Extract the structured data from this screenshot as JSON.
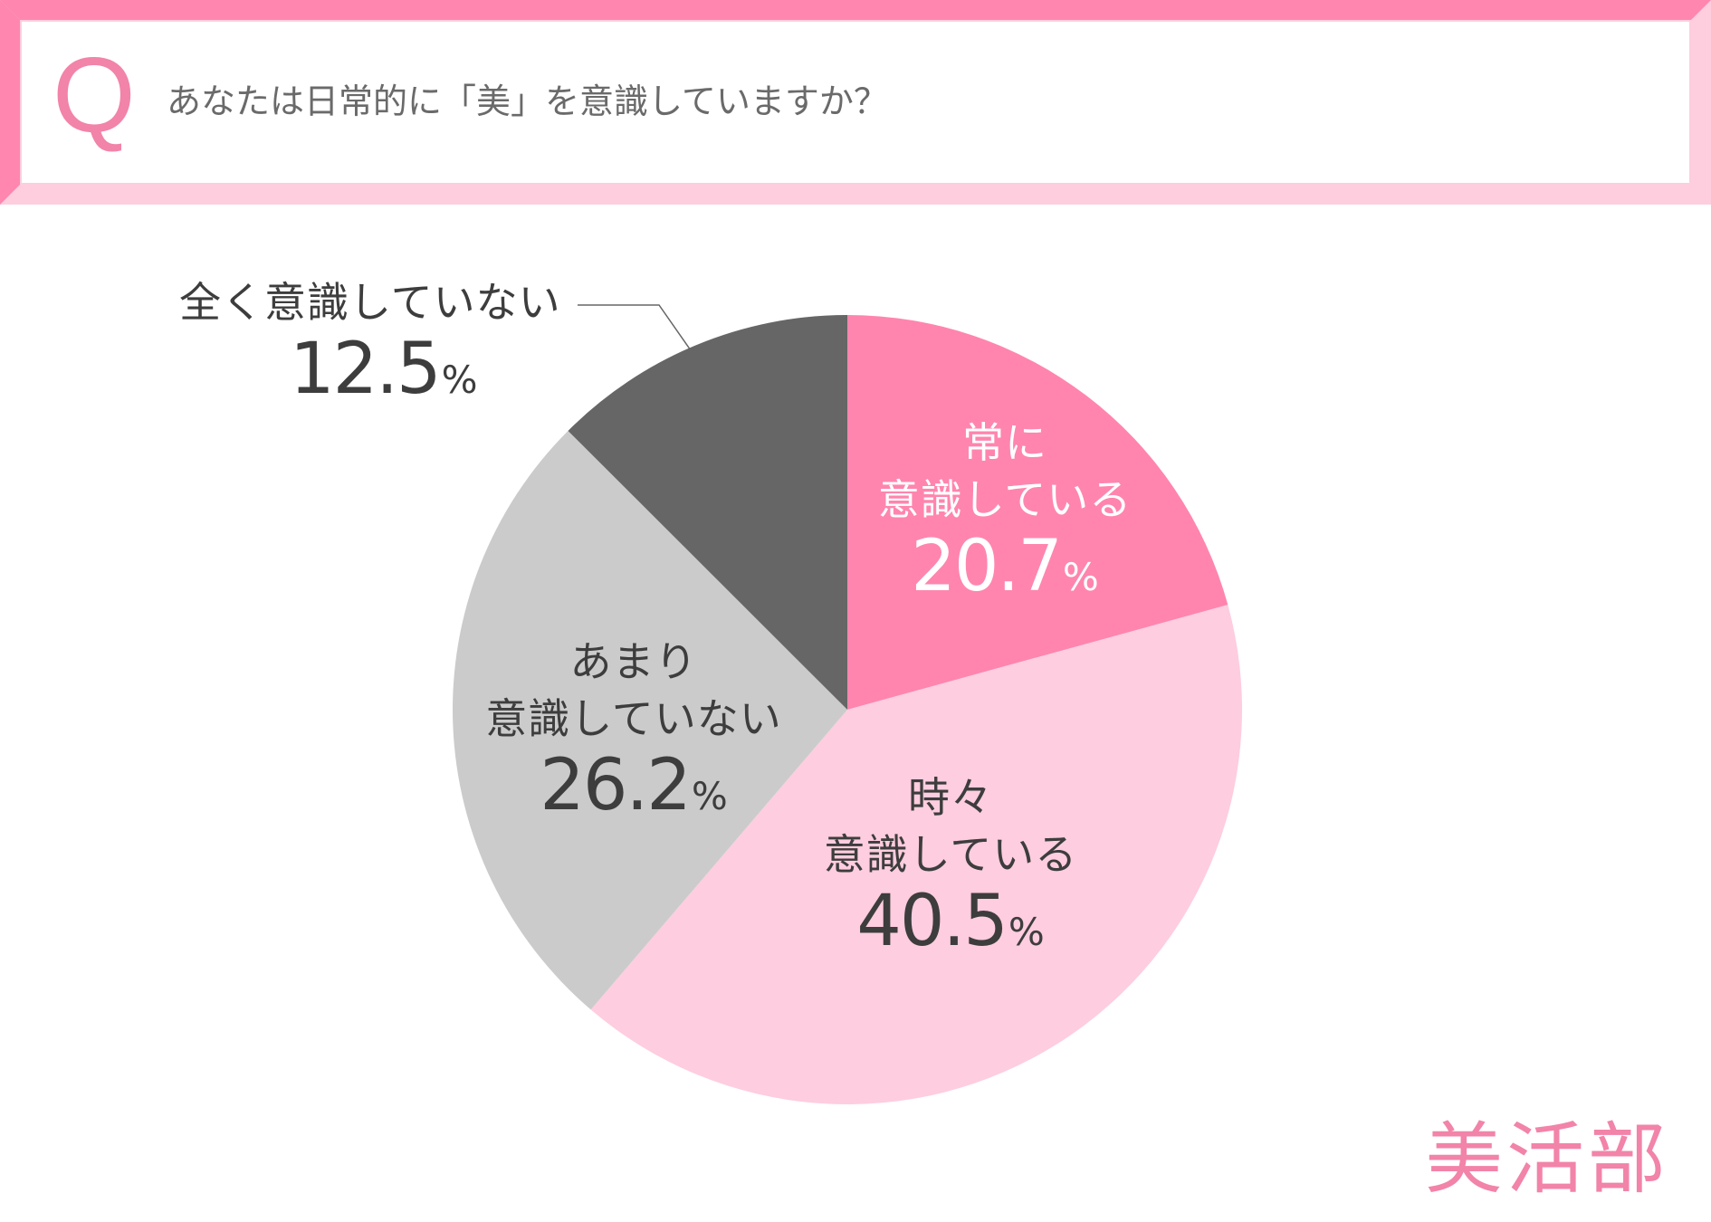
{
  "question": {
    "letter": "Q",
    "text": "あなたは日常的に「美」を意識していますか？"
  },
  "colors": {
    "accent": "#f283a9",
    "accent_light": "#fecdde",
    "dark_gray": "#666666",
    "light_gray": "#cbcbcb",
    "text": "#3d3d3d"
  },
  "chart_data": {
    "type": "pie",
    "start": "12 o'clock, clockwise",
    "slices": [
      {
        "label_line1": "常に",
        "label_line2": "意識している",
        "value": 20.7,
        "display": "20.7",
        "color": "#ff85ae"
      },
      {
        "label_line1": "時々",
        "label_line2": "意識している",
        "value": 40.5,
        "display": "40.5",
        "color": "#fecddf"
      },
      {
        "label_line1": "あまり",
        "label_line2": "意識していない",
        "value": 26.2,
        "display": "26.2",
        "color": "#cbcbcb"
      },
      {
        "label_line1": "全く意識していない",
        "label_line2": "",
        "value": 12.5,
        "display": "12.5",
        "color": "#666666"
      }
    ],
    "unit": "%"
  },
  "logo": "美活部"
}
